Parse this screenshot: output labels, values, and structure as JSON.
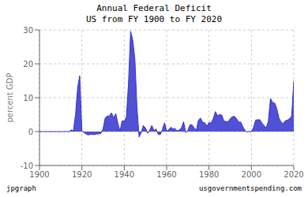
{
  "chart_data": {
    "type": "area",
    "title": "Annual Federal Deficit",
    "subtitle": "US from FY 1900 to FY 2020",
    "y_label": "percent GDP",
    "annotations": [
      "jpgraph",
      "usgovernmentspending.com"
    ],
    "color": "#3333cc",
    "grid": true,
    "xlim": [
      1900,
      2020
    ],
    "xticks": [
      1900,
      1920,
      1940,
      1960,
      1980,
      2000,
      2020
    ],
    "ylim": [
      -10,
      30
    ],
    "yticks": [
      -10,
      0,
      10,
      20,
      30
    ],
    "x": [
      1900,
      1901,
      1902,
      1903,
      1904,
      1905,
      1906,
      1907,
      1908,
      1909,
      1910,
      1911,
      1912,
      1913,
      1914,
      1915,
      1916,
      1917,
      1918,
      1919,
      1920,
      1921,
      1922,
      1923,
      1924,
      1925,
      1926,
      1927,
      1928,
      1929,
      1930,
      1931,
      1932,
      1933,
      1934,
      1935,
      1936,
      1937,
      1938,
      1939,
      1940,
      1941,
      1942,
      1943,
      1944,
      1945,
      1946,
      1947,
      1948,
      1949,
      1950,
      1951,
      1952,
      1953,
      1954,
      1955,
      1956,
      1957,
      1958,
      1959,
      1960,
      1961,
      1962,
      1963,
      1964,
      1965,
      1966,
      1967,
      1968,
      1969,
      1970,
      1971,
      1972,
      1973,
      1974,
      1975,
      1976,
      1977,
      1978,
      1979,
      1980,
      1981,
      1982,
      1983,
      1984,
      1985,
      1986,
      1987,
      1988,
      1989,
      1990,
      1991,
      1992,
      1993,
      1994,
      1995,
      1996,
      1997,
      1998,
      1999,
      2000,
      2001,
      2002,
      2003,
      2004,
      2005,
      2006,
      2007,
      2008,
      2009,
      2010,
      2011,
      2012,
      2013,
      2014,
      2015,
      2016,
      2017,
      2018,
      2019,
      2020
    ],
    "values": [
      0.0,
      0.0,
      0.0,
      0.0,
      0.0,
      0.0,
      0.0,
      0.0,
      0.0,
      0.0,
      0.0,
      0.0,
      0.0,
      0.0,
      0.0,
      0.5,
      0.2,
      5.0,
      13.0,
      16.5,
      0.3,
      -0.3,
      -0.7,
      -1.0,
      -0.8,
      -0.8,
      -0.9,
      -0.7,
      -0.7,
      -0.5,
      0.8,
      4.0,
      4.6,
      4.6,
      5.5,
      4.0,
      5.3,
      2.4,
      0.1,
      3.2,
      3.0,
      4.3,
      14.2,
      29.6,
      27.0,
      21.5,
      7.2,
      -1.6,
      -0.3,
      1.8,
      1.1,
      -0.5,
      0.4,
      1.8,
      0.3,
      0.8,
      -0.8,
      -0.9,
      0.6,
      2.6,
      0.1,
      0.6,
      1.3,
      0.8,
      0.9,
      0.2,
      0.5,
      1.1,
      2.9,
      -0.3,
      0.3,
      2.0,
      2.0,
      1.1,
      0.4,
      3.4,
      4.0,
      2.7,
      2.6,
      1.6,
      2.7,
      2.5,
      3.8,
      5.9,
      4.7,
      5.0,
      4.9,
      3.1,
      3.0,
      2.9,
      3.8,
      4.4,
      4.5,
      3.8,
      2.8,
      2.8,
      1.4,
      0.3,
      -0.1,
      0.1,
      -0.1,
      1.2,
      3.4,
      3.5,
      3.5,
      2.5,
      1.8,
      1.1,
      3.1,
      9.8,
      8.6,
      8.4,
      6.7,
      4.0,
      2.8,
      2.4,
      3.2,
      3.4,
      3.8,
      4.6,
      15.0
    ]
  }
}
